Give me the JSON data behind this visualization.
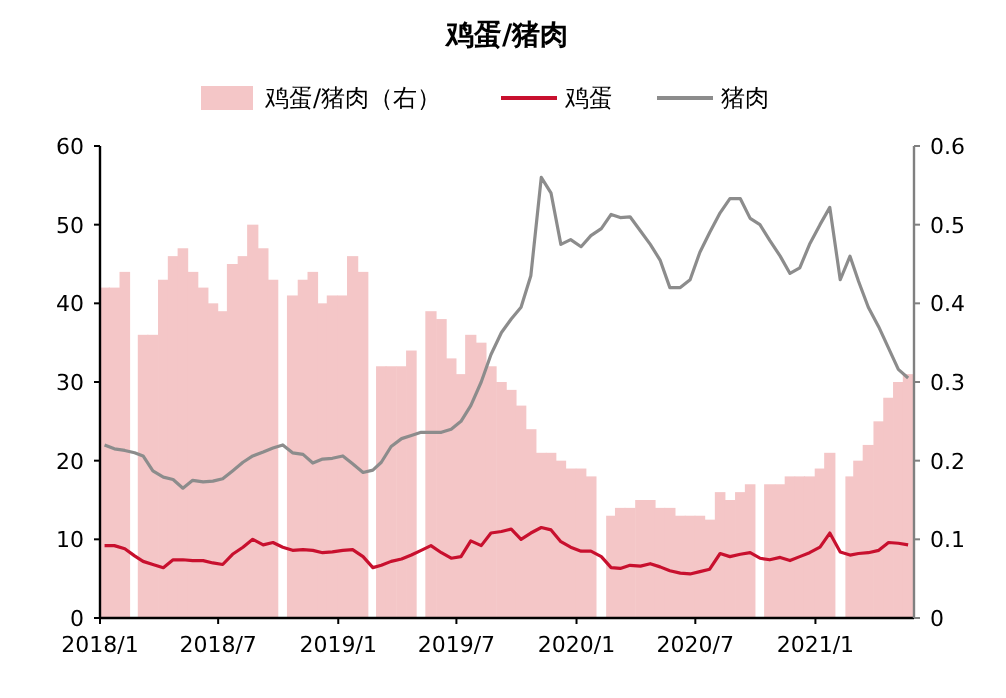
{
  "chart_data": {
    "type": "bar",
    "title": "鸡蛋/猪肉",
    "legend": "top",
    "x": [
      "2018-01-08",
      "2018-01-23",
      "2018-02-08",
      "2018-02-23",
      "2018-03-08",
      "2018-03-23",
      "2018-04-08",
      "2018-04-23",
      "2018-05-08",
      "2018-05-23",
      "2018-06-08",
      "2018-06-23",
      "2018-07-08",
      "2018-07-23",
      "2018-08-08",
      "2018-08-23",
      "2018-09-08",
      "2018-09-23",
      "2018-10-08",
      "2018-10-23",
      "2018-11-08",
      "2018-11-23",
      "2018-12-08",
      "2018-12-23",
      "2019-01-08",
      "2019-01-23",
      "2019-02-08",
      "2019-02-23",
      "2019-03-08",
      "2019-03-23",
      "2019-04-08",
      "2019-04-23",
      "2019-05-08",
      "2019-05-23",
      "2019-06-08",
      "2019-06-23",
      "2019-07-08",
      "2019-07-23",
      "2019-08-08",
      "2019-08-23",
      "2019-09-08",
      "2019-09-23",
      "2019-10-08",
      "2019-10-23",
      "2019-11-08",
      "2019-11-23",
      "2019-12-08",
      "2019-12-23",
      "2020-01-08",
      "2020-01-23",
      "2020-02-08",
      "2020-02-23",
      "2020-03-08",
      "2020-03-23",
      "2020-04-08",
      "2020-04-23",
      "2020-05-08",
      "2020-05-23",
      "2020-06-08",
      "2020-06-23",
      "2020-07-08",
      "2020-07-23",
      "2020-08-08",
      "2020-08-23",
      "2020-09-08",
      "2020-09-23",
      "2020-10-08",
      "2020-10-23",
      "2020-11-08",
      "2020-11-23",
      "2020-12-08",
      "2020-12-23",
      "2021-01-08",
      "2021-01-23",
      "2021-02-08",
      "2021-02-23",
      "2021-03-08",
      "2021-03-23",
      "2021-04-08",
      "2021-04-23",
      "2021-05-08",
      "2021-05-23"
    ],
    "series": [
      {
        "name": "鸡蛋/猪肉（右）",
        "axis": "y2",
        "color": "#f4c6c7",
        "values": [
          0.42,
          0.42,
          0.44,
          null,
          0.36,
          0.36,
          0.43,
          0.46,
          0.47,
          0.44,
          0.42,
          0.4,
          0.39,
          0.45,
          0.46,
          0.5,
          0.47,
          0.43,
          null,
          0.41,
          0.43,
          0.44,
          0.4,
          0.41,
          0.41,
          0.46,
          0.44,
          null,
          0.32,
          0.32,
          0.32,
          0.34,
          null,
          0.39,
          0.38,
          0.33,
          0.31,
          0.36,
          0.35,
          0.32,
          0.3,
          0.29,
          0.27,
          0.24,
          0.21,
          0.21,
          0.2,
          0.19,
          0.19,
          0.18,
          null,
          0.13,
          0.14,
          0.14,
          0.15,
          0.15,
          0.14,
          0.14,
          0.13,
          0.13,
          0.13,
          0.125,
          0.16,
          0.15,
          0.16,
          0.17,
          null,
          0.17,
          0.17,
          0.18,
          0.18,
          0.18,
          0.19,
          0.21,
          null,
          0.18,
          0.2,
          0.22,
          0.25,
          0.28,
          0.3,
          0.31
        ]
      },
      {
        "name": "鸡蛋",
        "type": "line",
        "color": "#c8102e",
        "values": [
          9.2,
          9.2,
          8.8,
          7.9,
          7.2,
          6.8,
          6.4,
          7.4,
          7.4,
          7.3,
          7.3,
          7.0,
          6.8,
          8.1,
          9.0,
          10.0,
          9.3,
          9.6,
          9.0,
          8.6,
          8.7,
          8.6,
          8.3,
          8.4,
          8.6,
          8.7,
          7.8,
          6.4,
          6.7,
          7.2,
          7.5,
          8.0,
          8.6,
          9.2,
          8.3,
          7.6,
          7.8,
          9.8,
          9.2,
          10.8,
          11.0,
          11.3,
          10.0,
          10.8,
          11.5,
          11.2,
          9.7,
          9.0,
          8.5,
          8.5,
          7.8,
          6.4,
          6.3,
          6.7,
          6.6,
          6.9,
          6.5,
          6.0,
          5.7,
          5.6,
          5.9,
          6.2,
          8.2,
          7.8,
          8.1,
          8.3,
          7.6,
          7.4,
          7.7,
          7.3,
          7.8,
          8.3,
          9.0,
          10.8,
          8.4,
          8.0,
          8.2,
          8.3,
          8.6,
          9.6,
          9.5,
          9.3
        ]
      },
      {
        "name": "猪肉",
        "type": "line",
        "color": "#8c8c8c",
        "values": [
          22.0,
          21.5,
          21.3,
          21.0,
          20.6,
          18.7,
          17.9,
          17.6,
          16.5,
          17.5,
          17.3,
          17.4,
          17.7,
          18.7,
          19.8,
          20.6,
          21.1,
          21.6,
          22.0,
          21.0,
          20.8,
          19.7,
          20.2,
          20.3,
          20.6,
          19.6,
          18.5,
          18.8,
          19.8,
          21.8,
          22.8,
          23.2,
          23.6,
          23.6,
          23.6,
          24.0,
          25.0,
          27.0,
          30.0,
          33.5,
          36.3,
          38.0,
          39.5,
          43.5,
          56.0,
          54.0,
          47.5,
          48.1,
          47.2,
          48.6,
          49.5,
          51.3,
          50.9,
          51.0,
          49.2,
          47.5,
          45.5,
          42.0,
          42.0,
          43.0,
          46.5,
          49.0,
          51.5,
          53.3,
          53.3,
          50.8,
          50.0,
          48.0,
          46.0,
          43.8,
          44.5,
          47.5,
          50.0,
          52.2,
          43.0,
          46.0,
          42.8,
          39.5,
          37.0,
          34.3,
          31.6,
          30.5
        ]
      }
    ],
    "xlim": [
      "2018-01-01",
      "2021-06-01"
    ],
    "xticks": [
      {
        "value": "2018-01-01",
        "label": "2018/1"
      },
      {
        "value": "2018-07-01",
        "label": "2018/7"
      },
      {
        "value": "2019-01-01",
        "label": "2019/1"
      },
      {
        "value": "2019-07-01",
        "label": "2019/7"
      },
      {
        "value": "2020-01-01",
        "label": "2020/1"
      },
      {
        "value": "2020-07-01",
        "label": "2020/7"
      },
      {
        "value": "2021-01-01",
        "label": "2021/1"
      }
    ],
    "ylim": [
      0,
      60
    ],
    "yticks": [
      0,
      10,
      20,
      30,
      40,
      50,
      60
    ],
    "y2lim": [
      0,
      0.6
    ],
    "y2ticks": [
      0,
      0.1,
      0.2,
      0.3,
      0.4,
      0.5,
      0.6
    ]
  }
}
